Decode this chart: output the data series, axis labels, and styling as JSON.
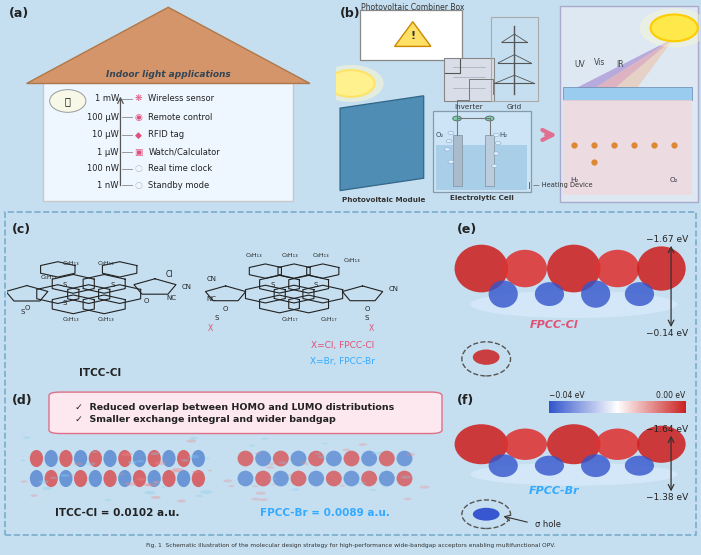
{
  "panel_a_label": "(a)",
  "panel_b_label": "(b)",
  "panel_c_label": "(c)",
  "panel_d_label": "(d)",
  "panel_e_label": "(e)",
  "panel_f_label": "(f)",
  "panel_a_title": "Indoor light applications",
  "panel_a_items": [
    [
      "1 mW",
      "Wireless sensor"
    ],
    [
      "100 μW",
      "Remote control"
    ],
    [
      "10 μW",
      "RFID tag"
    ],
    [
      "1 μW",
      "Watch/Calculator"
    ],
    [
      "100 nW",
      "Real time clock"
    ],
    [
      "1 nW",
      "Standby mode"
    ]
  ],
  "panel_c_mol1": "ITCC-Cl",
  "panel_c_mol2_pink": "X=Cl, FPCC-Cl",
  "panel_c_mol2_blue": "X=Br, FPCC-Br",
  "panel_d_text1": "✓  Reduced overlap between HOMO and LUMO distributions",
  "panel_d_text2": "✓  Smaller exchange integral and wider bandgap",
  "panel_d_label1": "ITCC-Cl = 0.0102 a.u.",
  "panel_d_label2": "FPCC-Br = 0.0089 a.u.",
  "panel_e_label_mol": "FPCC-Cl",
  "panel_e_ev1": "−1.67 eV",
  "panel_e_ev2": "−0.14 eV",
  "panel_f_label_mol": "FPCC-Br",
  "panel_f_ev_scale1": "−0.04 eV",
  "panel_f_ev_scale2": "0.00 eV",
  "panel_f_ev1": "−1.64 eV",
  "panel_f_ev2": "−1.38 eV",
  "panel_f_sigma": "σ hole",
  "bg_light_blue": "#c5dff0",
  "bg_panel_blue": "#d4eaf7",
  "bg_bottom": "#e2eff8",
  "dashed_color": "#7aadcc",
  "pink_text": "#e05075",
  "blue_text": "#33aaff",
  "roof_color": "#d4956a",
  "house_wall_color": "#eef7ff"
}
